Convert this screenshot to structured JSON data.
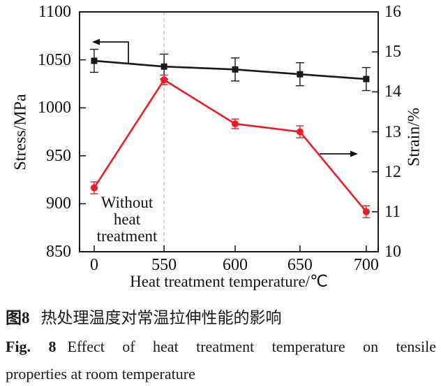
{
  "figure": {
    "caption_zh_label": "图8",
    "caption_zh_text": "热处理温度对常温拉伸性能的影响",
    "caption_en_label": "Fig. 8",
    "caption_en_text": "Effect of heat treatment temperature on tensile",
    "caption_en_text2": "properties at room temperature"
  },
  "chart_data": {
    "type": "line",
    "title": "",
    "x": {
      "label": "Heat treatment temperature/℃",
      "tick_labels": [
        "0",
        "550",
        "600",
        "650",
        "700"
      ]
    },
    "y_left": {
      "label": "Stress/MPa",
      "min": 850,
      "max": 1100,
      "ticks": [
        1100,
        1050,
        1000,
        950,
        900,
        850
      ]
    },
    "y_right": {
      "label": "Strain/%",
      "min": 10,
      "max": 16,
      "ticks": [
        16,
        15,
        14,
        13,
        12,
        11,
        10
      ]
    },
    "series": [
      {
        "name": "Stress",
        "axis": "left",
        "color": "#1a1a1a",
        "marker": "square",
        "values": [
          1049,
          1043,
          1040,
          1035,
          1030
        ],
        "error": [
          12,
          13,
          12,
          12,
          12
        ]
      },
      {
        "name": "Strain",
        "axis": "right",
        "color": "#ed1c24",
        "marker": "circle",
        "values": [
          11.6,
          14.3,
          13.2,
          13.0,
          11.0
        ],
        "error": [
          0.15,
          0.12,
          0.12,
          0.15,
          0.15
        ]
      }
    ],
    "annotation": {
      "text": "Without\nheat\ntreatment"
    },
    "dashed_line_at_x": "550",
    "legend": "none",
    "grid": false
  }
}
